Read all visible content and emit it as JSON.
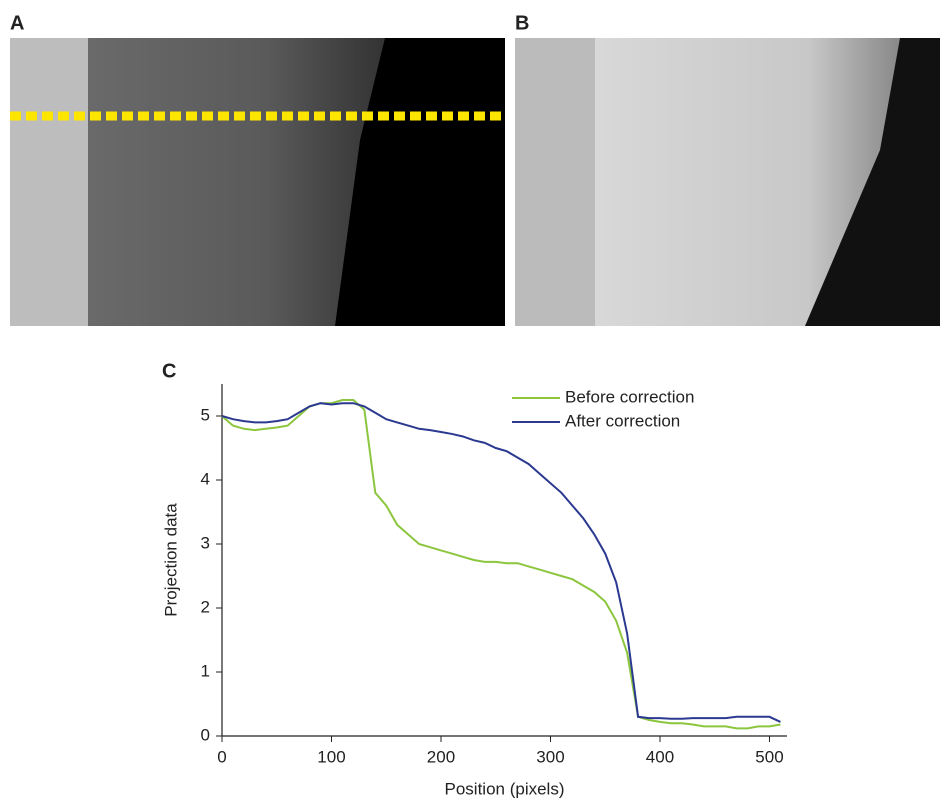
{
  "panel_labels": [
    "A",
    "B",
    "C"
  ],
  "chart_data": {
    "type": "line",
    "xlabel": "Position (pixels)",
    "ylabel": "Projection data",
    "xlim": [
      0,
      516
    ],
    "ylim": [
      0,
      5.5
    ],
    "xticks": [
      0,
      100,
      200,
      300,
      400,
      500
    ],
    "yticks": [
      0,
      1,
      2,
      3,
      4,
      5
    ],
    "legend": "upper right",
    "x": [
      0,
      10,
      20,
      30,
      40,
      50,
      60,
      70,
      80,
      90,
      100,
      110,
      120,
      130,
      140,
      150,
      160,
      170,
      180,
      190,
      200,
      210,
      220,
      230,
      240,
      250,
      260,
      270,
      280,
      290,
      300,
      310,
      320,
      330,
      340,
      350,
      360,
      370,
      380,
      390,
      400,
      410,
      420,
      430,
      440,
      450,
      460,
      470,
      480,
      490,
      500,
      510
    ],
    "series": [
      {
        "name": "Before correction",
        "color": "#8cc63f",
        "values": [
          5.0,
          4.85,
          4.8,
          4.78,
          4.8,
          4.82,
          4.85,
          5.0,
          5.15,
          5.2,
          5.2,
          5.25,
          5.25,
          5.1,
          3.8,
          3.6,
          3.3,
          3.15,
          3.0,
          2.95,
          2.9,
          2.85,
          2.8,
          2.75,
          2.72,
          2.72,
          2.7,
          2.7,
          2.65,
          2.6,
          2.55,
          2.5,
          2.45,
          2.35,
          2.25,
          2.1,
          1.8,
          1.3,
          0.3,
          0.25,
          0.22,
          0.2,
          0.2,
          0.18,
          0.15,
          0.15,
          0.15,
          0.12,
          0.12,
          0.15,
          0.15,
          0.18
        ]
      },
      {
        "name": "After correction",
        "color": "#2b3990",
        "values": [
          5.0,
          4.95,
          4.92,
          4.9,
          4.9,
          4.92,
          4.95,
          5.05,
          5.15,
          5.2,
          5.18,
          5.2,
          5.2,
          5.15,
          5.05,
          4.95,
          4.9,
          4.85,
          4.8,
          4.78,
          4.75,
          4.72,
          4.68,
          4.62,
          4.58,
          4.5,
          4.45,
          4.35,
          4.25,
          4.1,
          3.95,
          3.8,
          3.6,
          3.4,
          3.15,
          2.85,
          2.4,
          1.6,
          0.3,
          0.28,
          0.28,
          0.27,
          0.27,
          0.28,
          0.28,
          0.28,
          0.28,
          0.3,
          0.3,
          0.3,
          0.3,
          0.22
        ]
      }
    ]
  }
}
